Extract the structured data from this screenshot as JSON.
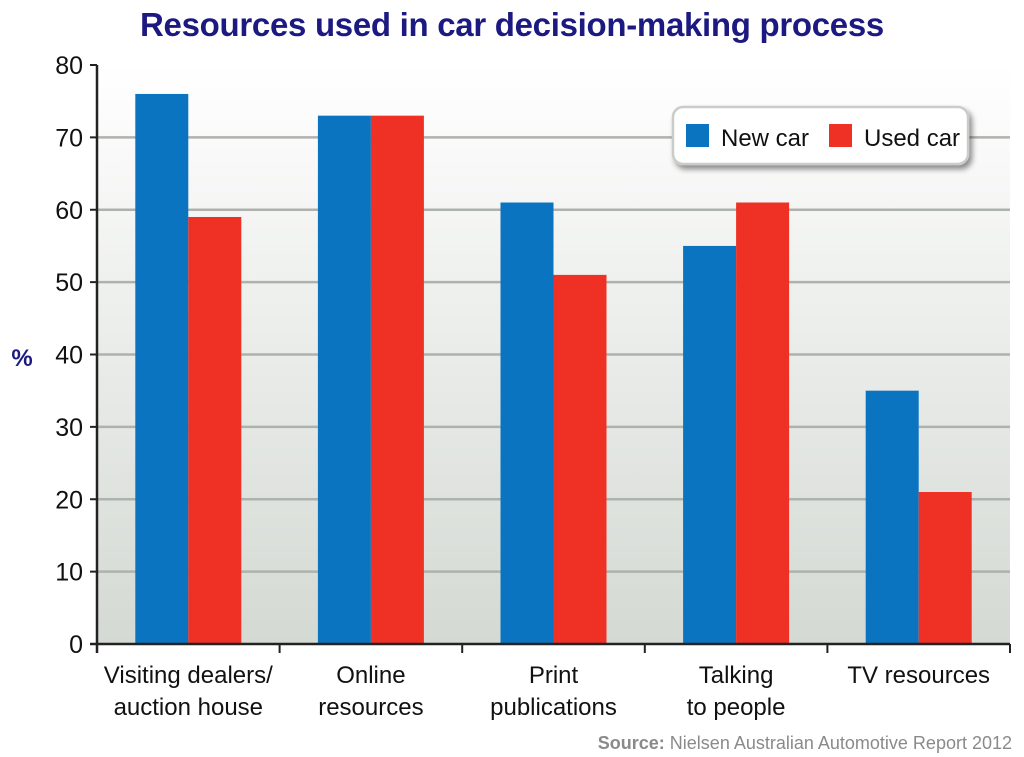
{
  "chart_data": {
    "type": "bar",
    "title": "Resources used in car decision-making process",
    "ylabel": "%",
    "xlabel": "",
    "ylim": [
      0,
      80
    ],
    "yticks": [
      0,
      10,
      20,
      30,
      40,
      50,
      60,
      70,
      80
    ],
    "categories": [
      [
        "Visiting dealers/",
        "auction house"
      ],
      [
        "Online",
        "resources"
      ],
      [
        "Print",
        "publications"
      ],
      [
        "Talking",
        "to people"
      ],
      [
        "TV resources"
      ]
    ],
    "series": [
      {
        "name": "New car",
        "color": "#0a74c0",
        "values": [
          76,
          73,
          61,
          55,
          35
        ]
      },
      {
        "name": "Used car",
        "color": "#ee3124",
        "values": [
          59,
          73,
          51,
          61,
          21
        ]
      }
    ],
    "grid": true,
    "legend_position": "top-right",
    "background_gradient": [
      "#ffffff",
      "#d4d9d3"
    ]
  },
  "source": {
    "label": "Source:",
    "text": " Nielsen Australian Automotive Report 2012"
  }
}
